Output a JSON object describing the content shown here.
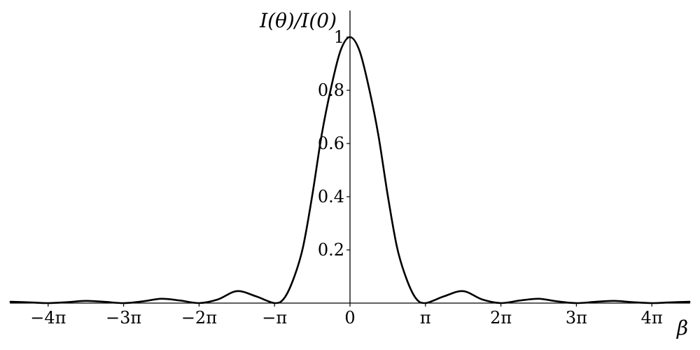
{
  "chart_data": {
    "type": "line",
    "title": "",
    "xlabel": "β",
    "ylabel": "I(θ)/I(0)",
    "x_unit": "π",
    "xlim": [
      -4.5,
      4.5
    ],
    "ylim": [
      0,
      1.1
    ],
    "grid": false,
    "legend": "none",
    "x_ticks": [
      {
        "value": -4,
        "label": "−4π"
      },
      {
        "value": -3,
        "label": "−3π"
      },
      {
        "value": -2,
        "label": "−2π"
      },
      {
        "value": -1,
        "label": "−π"
      },
      {
        "value": 0,
        "label": "0"
      },
      {
        "value": 1,
        "label": "π"
      },
      {
        "value": 2,
        "label": "2π"
      },
      {
        "value": 3,
        "label": "3π"
      },
      {
        "value": 4,
        "label": "4π"
      }
    ],
    "y_ticks": [
      {
        "value": 0.2,
        "label": "0.2"
      },
      {
        "value": 0.4,
        "label": "0.4"
      },
      {
        "value": 0.6,
        "label": "0.6"
      },
      {
        "value": 0.8,
        "label": "0.8"
      },
      {
        "value": 1.0,
        "label": "1"
      }
    ],
    "series": [
      {
        "x": [
          -4.5,
          -4.25,
          -4.0,
          -3.75,
          -3.5,
          -3.25,
          -3.0,
          -2.75,
          -2.5,
          -2.25,
          -2.0,
          -1.75,
          -1.5,
          -1.25,
          -1.0,
          -0.875,
          -0.75,
          -0.625,
          -0.5,
          -0.375,
          -0.25,
          -0.125,
          0.0,
          0.125,
          0.25,
          0.375,
          0.5,
          0.625,
          0.75,
          0.875,
          1.0,
          1.25,
          1.5,
          1.75,
          2.0,
          2.25,
          2.5,
          2.75,
          3.0,
          3.25,
          3.5,
          3.75,
          4.0,
          4.25,
          4.5
        ],
        "y": [
          0.005,
          0.0028,
          0.0,
          0.0035,
          0.0083,
          0.0047,
          0.0,
          0.0064,
          0.0162,
          0.0096,
          0.0,
          0.0138,
          0.045,
          0.0259,
          0.0,
          0.0172,
          0.0901,
          0.2075,
          0.4053,
          0.6331,
          0.8106,
          0.9496,
          1.0,
          0.9496,
          0.8106,
          0.6331,
          0.4053,
          0.2075,
          0.0901,
          0.0172,
          0.0,
          0.0259,
          0.045,
          0.0138,
          0.0,
          0.0096,
          0.0162,
          0.0064,
          0.0,
          0.0047,
          0.0083,
          0.0035,
          0.0,
          0.0028,
          0.005
        ]
      }
    ]
  }
}
